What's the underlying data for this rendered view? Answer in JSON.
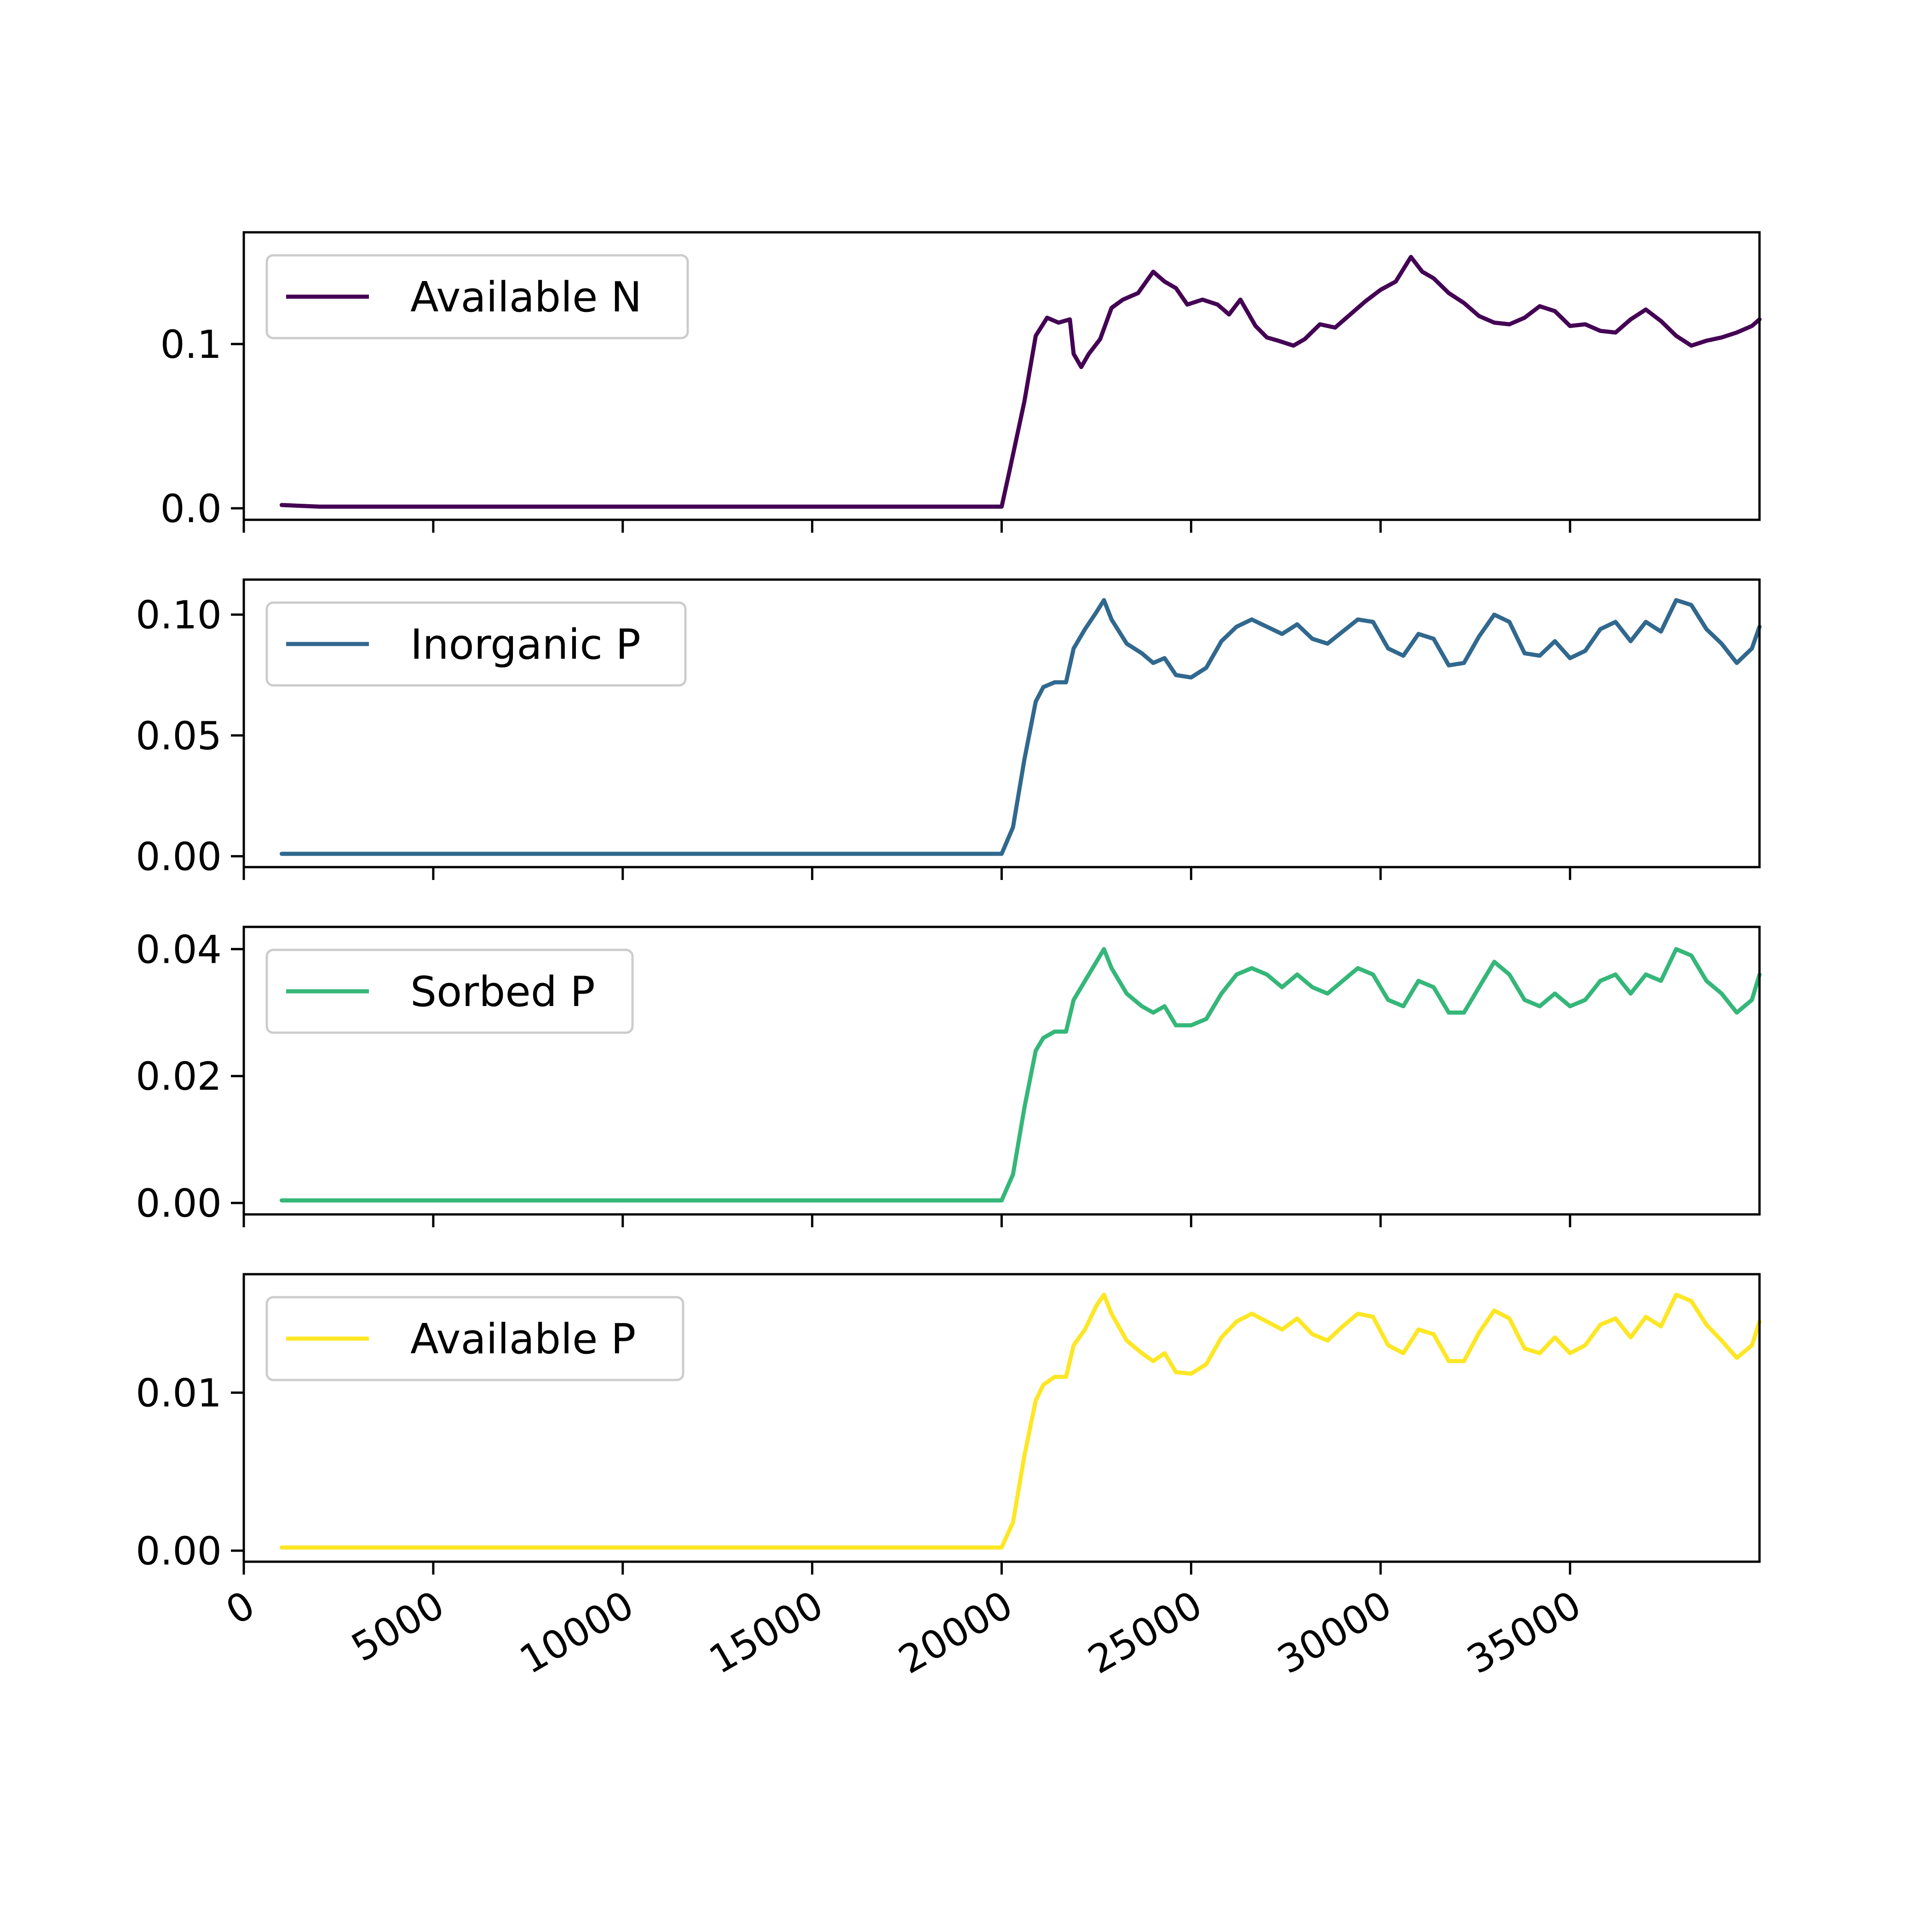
{
  "chart_data": [
    {
      "type": "line",
      "series": [
        {
          "name": "Available N",
          "color": "#440154",
          "x": [
            1000,
            2000,
            4000,
            6000,
            8000,
            10000,
            12000,
            14000,
            16000,
            18000,
            19500,
            20000,
            20200,
            20600,
            20900,
            21200,
            21500,
            21800,
            21900,
            22100,
            22300,
            22600,
            22900,
            23200,
            23600,
            24000,
            24300,
            24600,
            24900,
            25300,
            25700,
            26000,
            26300,
            26700,
            27000,
            27300,
            27700,
            28000,
            28400,
            28800,
            29200,
            29600,
            30000,
            30400,
            30800,
            31100,
            31400,
            31800,
            32200,
            32600,
            33000,
            33400,
            33800,
            34200,
            34600,
            35000,
            35400,
            35800,
            36200,
            36600,
            37000,
            37400,
            37800,
            38200,
            38600,
            39000,
            39400,
            39800,
            40000
          ],
          "values": [
            0.002,
            0.001,
            0.001,
            0.001,
            0.001,
            0.001,
            0.001,
            0.001,
            0.001,
            0.001,
            0.001,
            0.001,
            0.022,
            0.065,
            0.105,
            0.116,
            0.113,
            0.115,
            0.094,
            0.086,
            0.094,
            0.103,
            0.122,
            0.127,
            0.131,
            0.144,
            0.138,
            0.134,
            0.124,
            0.127,
            0.124,
            0.118,
            0.127,
            0.111,
            0.104,
            0.102,
            0.099,
            0.103,
            0.112,
            0.11,
            0.118,
            0.126,
            0.133,
            0.138,
            0.153,
            0.144,
            0.14,
            0.131,
            0.125,
            0.117,
            0.113,
            0.112,
            0.116,
            0.123,
            0.12,
            0.111,
            0.112,
            0.108,
            0.107,
            0.115,
            0.121,
            0.114,
            0.105,
            0.099,
            0.102,
            0.104,
            0.107,
            0.111,
            0.115
          ]
        }
      ],
      "xlim": [
        0,
        40000
      ],
      "ylim": [
        -0.007,
        0.168
      ],
      "yticks": [
        "0.0",
        "0.1"
      ],
      "ytick_values": [
        0.0,
        0.1
      ],
      "legend_loc": "upper-left"
    },
    {
      "type": "line",
      "series": [
        {
          "name": "Inorganic P",
          "color": "#31688e",
          "x": [
            1000,
            2000,
            4000,
            6000,
            8000,
            10000,
            12000,
            14000,
            16000,
            18000,
            19500,
            20000,
            20300,
            20600,
            20900,
            21100,
            21400,
            21700,
            21900,
            22200,
            22500,
            22700,
            22900,
            23300,
            23700,
            24000,
            24300,
            24600,
            25000,
            25400,
            25800,
            26200,
            26600,
            27000,
            27400,
            27800,
            28200,
            28600,
            29000,
            29400,
            29800,
            30200,
            30600,
            31000,
            31400,
            31800,
            32200,
            32600,
            33000,
            33400,
            33800,
            34200,
            34600,
            35000,
            35400,
            35800,
            36200,
            36600,
            37000,
            37400,
            37800,
            38200,
            38600,
            39000,
            39400,
            39800,
            40000
          ],
          "values": [
            0.001,
            0.001,
            0.001,
            0.001,
            0.001,
            0.001,
            0.001,
            0.001,
            0.001,
            0.001,
            0.001,
            0.001,
            0.012,
            0.04,
            0.064,
            0.07,
            0.072,
            0.072,
            0.086,
            0.094,
            0.101,
            0.106,
            0.098,
            0.088,
            0.084,
            0.08,
            0.082,
            0.075,
            0.074,
            0.078,
            0.089,
            0.095,
            0.098,
            0.095,
            0.092,
            0.096,
            0.09,
            0.088,
            0.093,
            0.098,
            0.097,
            0.086,
            0.083,
            0.092,
            0.09,
            0.079,
            0.08,
            0.091,
            0.1,
            0.097,
            0.084,
            0.083,
            0.089,
            0.082,
            0.085,
            0.094,
            0.097,
            0.089,
            0.097,
            0.093,
            0.106,
            0.104,
            0.094,
            0.088,
            0.08,
            0.086,
            0.095
          ]
        }
      ],
      "xlim": [
        0,
        40000
      ],
      "ylim": [
        -0.0045,
        0.1145
      ],
      "yticks": [
        "0.00",
        "0.05",
        "0.10"
      ],
      "ytick_values": [
        0.0,
        0.05,
        0.1
      ],
      "legend_loc": "upper-left"
    },
    {
      "type": "line",
      "series": [
        {
          "name": "Sorbed P",
          "color": "#35b779",
          "x": [
            1000,
            2000,
            4000,
            6000,
            8000,
            10000,
            12000,
            14000,
            16000,
            18000,
            19500,
            20000,
            20300,
            20600,
            20900,
            21100,
            21400,
            21700,
            21900,
            22200,
            22500,
            22700,
            22900,
            23300,
            23700,
            24000,
            24300,
            24600,
            25000,
            25400,
            25800,
            26200,
            26600,
            27000,
            27400,
            27800,
            28200,
            28600,
            29000,
            29400,
            29800,
            30200,
            30600,
            31000,
            31400,
            31800,
            32200,
            32600,
            33000,
            33400,
            33800,
            34200,
            34600,
            35000,
            35400,
            35800,
            36200,
            36600,
            37000,
            37400,
            37800,
            38200,
            38600,
            39000,
            39400,
            39800,
            40000
          ],
          "values": [
            0.0004,
            0.0004,
            0.0004,
            0.0004,
            0.0004,
            0.0004,
            0.0004,
            0.0004,
            0.0004,
            0.0004,
            0.0004,
            0.0004,
            0.0045,
            0.015,
            0.024,
            0.026,
            0.027,
            0.027,
            0.032,
            0.035,
            0.038,
            0.04,
            0.037,
            0.033,
            0.031,
            0.03,
            0.031,
            0.028,
            0.028,
            0.029,
            0.033,
            0.036,
            0.037,
            0.036,
            0.034,
            0.036,
            0.034,
            0.033,
            0.035,
            0.037,
            0.036,
            0.032,
            0.031,
            0.035,
            0.034,
            0.03,
            0.03,
            0.034,
            0.038,
            0.036,
            0.032,
            0.031,
            0.033,
            0.031,
            0.032,
            0.035,
            0.036,
            0.033,
            0.036,
            0.035,
            0.04,
            0.039,
            0.035,
            0.033,
            0.03,
            0.032,
            0.036
          ]
        }
      ],
      "xlim": [
        0,
        40000
      ],
      "ylim": [
        -0.0018,
        0.0435
      ],
      "yticks": [
        "0.00",
        "0.02",
        "0.04"
      ],
      "ytick_values": [
        0.0,
        0.02,
        0.04
      ],
      "legend_loc": "upper-left"
    },
    {
      "type": "line",
      "series": [
        {
          "name": "Available P",
          "color": "#fde725",
          "x": [
            1000,
            2000,
            4000,
            6000,
            8000,
            10000,
            12000,
            14000,
            16000,
            18000,
            19500,
            20000,
            20300,
            20600,
            20900,
            21100,
            21400,
            21700,
            21900,
            22200,
            22500,
            22700,
            22900,
            23300,
            23700,
            24000,
            24300,
            24600,
            25000,
            25400,
            25800,
            26200,
            26600,
            27000,
            27400,
            27800,
            28200,
            28600,
            29000,
            29400,
            29800,
            30200,
            30600,
            31000,
            31400,
            31800,
            32200,
            32600,
            33000,
            33400,
            33800,
            34200,
            34600,
            35000,
            35400,
            35800,
            36200,
            36600,
            37000,
            37400,
            37800,
            38200,
            38600,
            39000,
            39400,
            39800,
            40000
          ],
          "values": [
            0.0002,
            0.0002,
            0.0002,
            0.0002,
            0.0002,
            0.0002,
            0.0002,
            0.0002,
            0.0002,
            0.0002,
            0.0002,
            0.0002,
            0.0018,
            0.006,
            0.0095,
            0.0105,
            0.011,
            0.011,
            0.013,
            0.014,
            0.0155,
            0.0162,
            0.015,
            0.0133,
            0.0125,
            0.012,
            0.0125,
            0.0113,
            0.0112,
            0.0118,
            0.0135,
            0.0145,
            0.015,
            0.0145,
            0.014,
            0.0147,
            0.0137,
            0.0133,
            0.0142,
            0.015,
            0.0148,
            0.013,
            0.0125,
            0.014,
            0.0137,
            0.012,
            0.012,
            0.0138,
            0.0152,
            0.0147,
            0.0128,
            0.0125,
            0.0135,
            0.0125,
            0.013,
            0.0143,
            0.0147,
            0.0135,
            0.0148,
            0.0142,
            0.0162,
            0.0158,
            0.0143,
            0.0133,
            0.0122,
            0.013,
            0.0145
          ]
        }
      ],
      "xlim": [
        0,
        40000
      ],
      "ylim": [
        -0.0007,
        0.0175
      ],
      "yticks": [
        "0.00",
        "0.01"
      ],
      "ytick_values": [
        0.0,
        0.01
      ],
      "xticks": [
        "0",
        "5000",
        "10000",
        "15000",
        "20000",
        "25000",
        "30000",
        "35000"
      ],
      "xtick_values": [
        0,
        5000,
        10000,
        15000,
        20000,
        25000,
        30000,
        35000
      ],
      "legend_loc": "upper-left"
    }
  ]
}
